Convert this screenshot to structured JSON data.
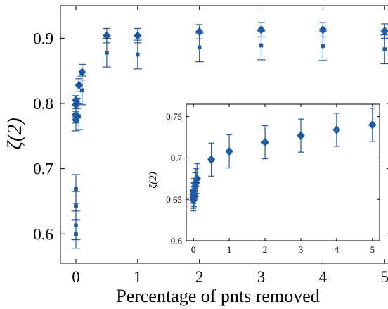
{
  "colors": {
    "marker": "#1f5aa3",
    "axis": "#000000",
    "background": "#ffffff"
  },
  "chart_data": [
    {
      "type": "scatter",
      "title": "",
      "xlabel": "Percentage of pnts removed",
      "ylabel": "ζ(2)",
      "xlim": [
        -0.25,
        5.1
      ],
      "ylim": [
        0.555,
        0.95
      ],
      "xticks": [
        0,
        1,
        2,
        3,
        4,
        5
      ],
      "xtick_labels": [
        "0",
        "1",
        "2",
        "3",
        "4",
        "5"
      ],
      "yticks": [
        0.6,
        0.7,
        0.8,
        0.9
      ],
      "ytick_labels": [
        "0.6",
        "0.7",
        "0.8",
        "0.9"
      ],
      "grid": false,
      "series": [
        {
          "marker": "diamond",
          "points": [
            {
              "x": 0.0,
              "y": 0.775,
              "err": 0.005
            },
            {
              "x": 0.0,
              "y": 0.783,
              "err": 0.005
            },
            {
              "x": 0.0,
              "y": 0.798,
              "err": 0.006
            },
            {
              "x": 0.0,
              "y": 0.805,
              "err": 0.007
            },
            {
              "x": 0.02,
              "y": 0.8,
              "err": 0.008
            },
            {
              "x": 0.05,
              "y": 0.828,
              "err": 0.01
            },
            {
              "x": 0.1,
              "y": 0.848,
              "err": 0.012
            },
            {
              "x": 0.5,
              "y": 0.904,
              "err": 0.011
            },
            {
              "x": 1.0,
              "y": 0.904,
              "err": 0.011
            },
            {
              "x": 2.0,
              "y": 0.91,
              "err": 0.011
            },
            {
              "x": 3.0,
              "y": 0.913,
              "err": 0.011
            },
            {
              "x": 4.0,
              "y": 0.913,
              "err": 0.011
            },
            {
              "x": 5.0,
              "y": 0.911,
              "err": 0.011
            }
          ]
        },
        {
          "marker": "square",
          "points": [
            {
              "x": 0.0,
              "y": 0.6,
              "err": 0.022
            },
            {
              "x": 0.0,
              "y": 0.613,
              "err": 0.022
            },
            {
              "x": 0.0,
              "y": 0.643,
              "err": 0.022
            },
            {
              "x": 0.0,
              "y": 0.669,
              "err": 0.022
            },
            {
              "x": 0.0,
              "y": 0.778,
              "err": 0.02
            },
            {
              "x": 0.05,
              "y": 0.78,
              "err": 0.02
            },
            {
              "x": 0.1,
              "y": 0.82,
              "err": 0.022
            },
            {
              "x": 0.5,
              "y": 0.878,
              "err": 0.022
            },
            {
              "x": 1.0,
              "y": 0.875,
              "err": 0.022
            },
            {
              "x": 2.0,
              "y": 0.886,
              "err": 0.022
            },
            {
              "x": 3.0,
              "y": 0.889,
              "err": 0.022
            },
            {
              "x": 4.0,
              "y": 0.888,
              "err": 0.022
            },
            {
              "x": 5.0,
              "y": 0.883,
              "err": 0.022
            }
          ]
        }
      ]
    },
    {
      "type": "scatter",
      "title": "",
      "xlabel": "",
      "ylabel": "ζ(2)",
      "xlim": [
        -0.2,
        5.2
      ],
      "ylim": [
        0.6,
        0.765
      ],
      "xticks": [
        0,
        1,
        2,
        3,
        4,
        5
      ],
      "xtick_labels": [
        "0",
        "1",
        "2",
        "3",
        "4",
        "5"
      ],
      "yticks": [
        0.6,
        0.65,
        0.7,
        0.75
      ],
      "ytick_labels": [
        "0.6",
        "0.65",
        "0.7",
        "0.75"
      ],
      "grid": false,
      "series": [
        {
          "marker": "diamond",
          "points": [
            {
              "x": 0.0,
              "y": 0.649,
              "err": 0.013
            },
            {
              "x": 0.0,
              "y": 0.652,
              "err": 0.013
            },
            {
              "x": 0.0,
              "y": 0.656,
              "err": 0.014
            },
            {
              "x": 0.0,
              "y": 0.66,
              "err": 0.015
            },
            {
              "x": 0.02,
              "y": 0.655,
              "err": 0.014
            },
            {
              "x": 0.05,
              "y": 0.666,
              "err": 0.016
            },
            {
              "x": 0.07,
              "y": 0.67,
              "err": 0.017
            },
            {
              "x": 0.1,
              "y": 0.675,
              "err": 0.018
            },
            {
              "x": 0.5,
              "y": 0.698,
              "err": 0.02
            },
            {
              "x": 1.0,
              "y": 0.708,
              "err": 0.02
            },
            {
              "x": 2.0,
              "y": 0.719,
              "err": 0.02
            },
            {
              "x": 3.0,
              "y": 0.727,
              "err": 0.02
            },
            {
              "x": 4.0,
              "y": 0.734,
              "err": 0.02
            },
            {
              "x": 5.0,
              "y": 0.74,
              "err": 0.02
            }
          ]
        }
      ]
    }
  ]
}
